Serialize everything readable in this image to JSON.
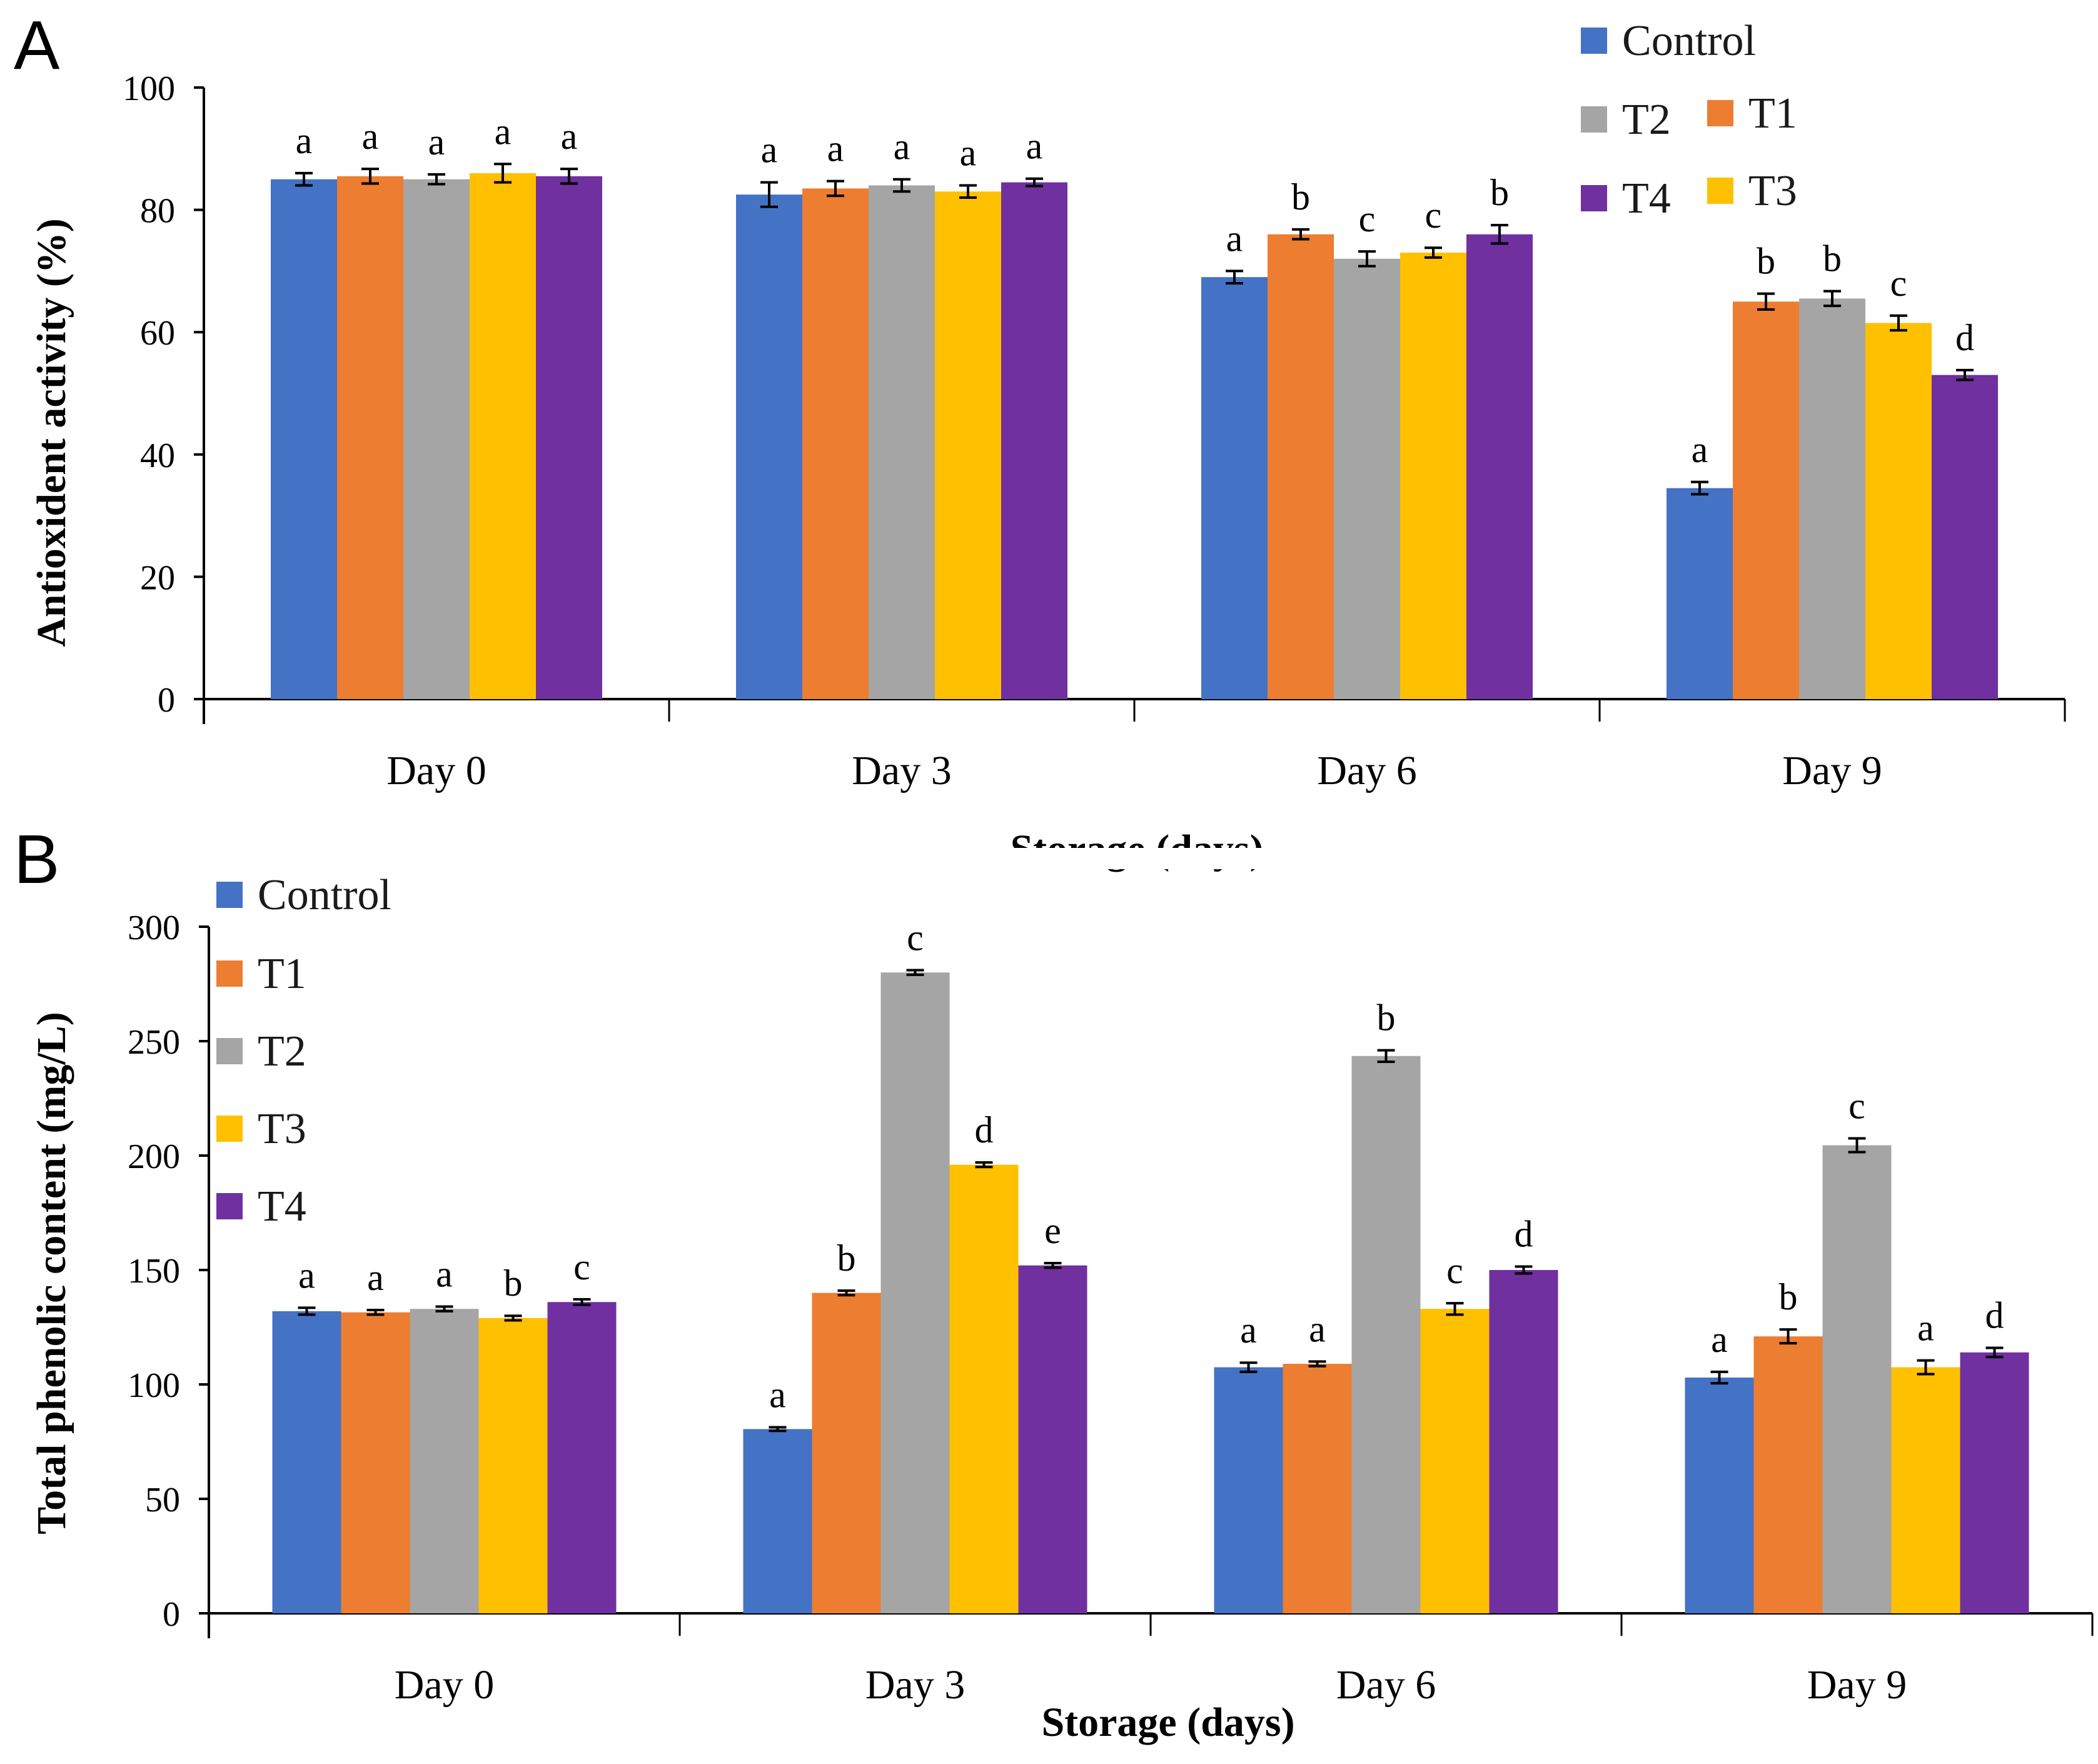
{
  "panels": [
    {
      "letter": "A",
      "chart_data": {
        "type": "bar",
        "title": "",
        "xlabel": "Storage (days)",
        "ylabel": "Antioxident activity (%)",
        "ylim": [
          0,
          100
        ],
        "yticks": [
          0,
          20,
          40,
          60,
          80,
          100
        ],
        "categories": [
          "Day 0",
          "Day 3",
          "Day 6",
          "Day 9"
        ],
        "legend_position": "top-right",
        "series": [
          {
            "name": "Control",
            "color": "#4472C4",
            "values": [
              85,
              82.5,
              69,
              34.5
            ],
            "errors": [
              1,
              2,
              1,
              1
            ],
            "labels": [
              "a",
              "a",
              "a",
              "a"
            ]
          },
          {
            "name": "T1",
            "color": "#ED7D31",
            "values": [
              85.5,
              83.5,
              76,
              65
            ],
            "errors": [
              1.2,
              1.2,
              0.8,
              1.3
            ],
            "labels": [
              "a",
              "a",
              "b",
              "b"
            ]
          },
          {
            "name": "T2",
            "color": "#A5A5A5",
            "values": [
              85,
              84,
              72,
              65.5
            ],
            "errors": [
              0.8,
              1,
              1.2,
              1.2
            ],
            "labels": [
              "a",
              "a",
              "c",
              "b"
            ]
          },
          {
            "name": "T3",
            "color": "#FFC000",
            "values": [
              86,
              83,
              73,
              61.5
            ],
            "errors": [
              1.5,
              1,
              0.8,
              1.2
            ],
            "labels": [
              "a",
              "a",
              "c",
              "c"
            ]
          },
          {
            "name": "T4",
            "color": "#7030A0",
            "values": [
              85.5,
              84.5,
              76,
              53
            ],
            "errors": [
              1.2,
              0.6,
              1.5,
              0.8
            ],
            "labels": [
              "a",
              "a",
              "b",
              "d"
            ]
          }
        ]
      }
    },
    {
      "letter": "B",
      "chart_data": {
        "type": "bar",
        "title": "",
        "xlabel": "Storage (days)",
        "ylabel": "Total phenolic content (mg/L)",
        "ylim": [
          0,
          300
        ],
        "yticks": [
          0,
          50,
          100,
          150,
          200,
          250,
          300
        ],
        "categories": [
          "Day 0",
          "Day 3",
          "Day 6",
          "Day 9"
        ],
        "legend_position": "top-left",
        "series": [
          {
            "name": "Control",
            "color": "#4472C4",
            "values": [
              132,
              80.5,
              107.5,
              103
            ],
            "errors": [
              1.5,
              0.8,
              2,
              2.5
            ],
            "labels": [
              "a",
              "a",
              "a",
              "a"
            ]
          },
          {
            "name": "T1",
            "color": "#ED7D31",
            "values": [
              131.5,
              140,
              109,
              121
            ],
            "errors": [
              1,
              1,
              1,
              3
            ],
            "labels": [
              "a",
              "b",
              "a",
              "b"
            ]
          },
          {
            "name": "T2",
            "color": "#A5A5A5",
            "values": [
              133,
              280,
              243.5,
              204.5
            ],
            "errors": [
              1,
              1,
              2.5,
              3
            ],
            "labels": [
              "a",
              "c",
              "b",
              "c"
            ]
          },
          {
            "name": "T3",
            "color": "#FFC000",
            "values": [
              129,
              196,
              133,
              107.5
            ],
            "errors": [
              1,
              1,
              2.5,
              3
            ],
            "labels": [
              "b",
              "d",
              "c",
              "a"
            ]
          },
          {
            "name": "T4",
            "color": "#7030A0",
            "values": [
              136,
              152,
              150,
              114
            ],
            "errors": [
              1.2,
              1,
              1.5,
              2
            ],
            "labels": [
              "c",
              "e",
              "d",
              "d"
            ]
          }
        ]
      }
    }
  ]
}
